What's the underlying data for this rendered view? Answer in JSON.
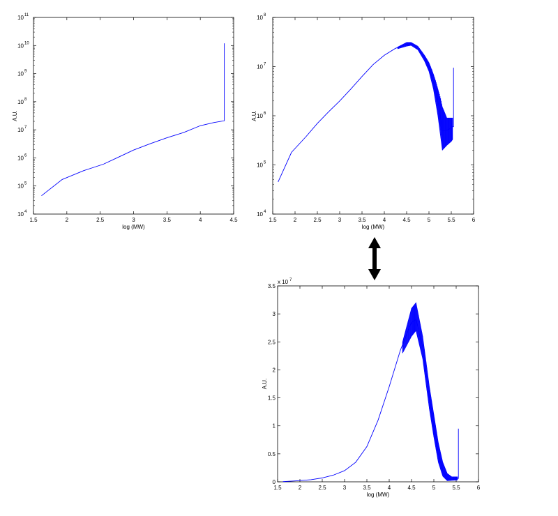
{
  "chart_data": [
    {
      "type": "line",
      "xlabel": "log (MW)",
      "ylabel": "A.U.",
      "xlim": [
        1.5,
        4.5
      ],
      "ylim": [
        10000,
        100000000000
      ],
      "yscale": "log",
      "xticks": [
        "1.5",
        "2",
        "2.5",
        "3",
        "3.5",
        "4",
        "4.5"
      ],
      "yticks_exponents": [
        "4",
        "5",
        "6",
        "7",
        "8",
        "9",
        "10",
        "11"
      ],
      "grid": false,
      "color": "#0000ff",
      "series": [
        {
          "x": [
            1.62,
            1.93,
            2.25,
            2.55,
            2.75,
            3.0,
            3.25,
            3.5,
            3.75,
            4.0,
            4.2,
            4.36,
            4.36
          ],
          "y": [
            45000,
            170000,
            350000,
            600000,
            1000000,
            1900000,
            3200000,
            5200000,
            8000000,
            14000000,
            18000000,
            21000000,
            12000000000
          ]
        }
      ]
    },
    {
      "type": "line",
      "xlabel": "log (MW)",
      "ylabel": "A.U.",
      "xlim": [
        1.5,
        6
      ],
      "ylim": [
        10000,
        100000000
      ],
      "yscale": "log",
      "xticks": [
        "1.5",
        "2",
        "2.5",
        "3",
        "3.5",
        "4",
        "4.5",
        "5",
        "5.5",
        "6"
      ],
      "yticks_exponents": [
        "4",
        "5",
        "6",
        "7",
        "8"
      ],
      "grid": false,
      "color": "#0000ff",
      "series": [
        {
          "x": [
            1.62,
            1.92,
            2.25,
            2.5,
            2.75,
            3.0,
            3.25,
            3.5,
            3.75,
            4.0,
            4.25,
            4.5,
            4.6,
            4.75,
            4.9,
            5.0,
            5.1,
            5.2,
            5.3,
            5.4,
            5.53,
            5.55,
            5.55
          ],
          "y": [
            45000,
            180000,
            380000,
            700000,
            1200000,
            2000000,
            3500000,
            6300000,
            11000000,
            17000000,
            23500000,
            28500000,
            29000000,
            24000000,
            15000000,
            10000000,
            5000000,
            2000000,
            500000,
            500000,
            600000,
            600000,
            9500000
          ],
          "noise_band": {
            "x": [
              4.3,
              4.5,
              4.6,
              4.75,
              4.9,
              5.0,
              5.1,
              5.2,
              5.3,
              5.4,
              5.5,
              5.53
            ],
            "lo": [
              23000000,
              26000000,
              27000000,
              22000000,
              13000000,
              8000000,
              3500000,
              1000000,
              200000,
              250000,
              300000,
              330000
            ],
            "hi": [
              25000000,
              31000000,
              31000000,
              26000000,
              17000000,
              12000000,
              7000000,
              3500000,
              1500000,
              900000,
              900000,
              900000
            ]
          }
        }
      ]
    },
    {
      "type": "line",
      "xlabel": "log (MW)",
      "ylabel": "A.U.",
      "xlim": [
        1.5,
        6
      ],
      "ylim": [
        0,
        35000000
      ],
      "yscale": "linear",
      "xticks": [
        "1.5",
        "2",
        "2.5",
        "3",
        "3.5",
        "4",
        "4.5",
        "5",
        "5.5",
        "6"
      ],
      "yticks": [
        "0",
        "0.5",
        "1",
        "1.5",
        "2",
        "2.5",
        "3",
        "3.5"
      ],
      "y_multiplier_base": "x 10",
      "y_multiplier_exp": "7",
      "grid": false,
      "color": "#0000ff",
      "series": [
        {
          "x": [
            1.62,
            1.92,
            2.25,
            2.5,
            2.75,
            3.0,
            3.25,
            3.5,
            3.75,
            4.0,
            4.25,
            4.5,
            4.6,
            4.75,
            4.9,
            5.0,
            5.1,
            5.2,
            5.3,
            5.4,
            5.53,
            5.55,
            5.55
          ],
          "y": [
            45000,
            180000,
            380000,
            700000,
            1200000,
            2000000,
            3500000,
            6300000,
            11000000,
            17000000,
            23500000,
            28500000,
            29000000,
            24000000,
            15000000,
            10000000,
            5000000,
            2000000,
            500000,
            500000,
            600000,
            600000,
            9500000
          ],
          "noise_band": {
            "x": [
              4.3,
              4.5,
              4.6,
              4.75,
              4.9,
              5.0,
              5.1,
              5.2,
              5.3,
              5.4,
              5.5,
              5.53
            ],
            "lo": [
              23000000,
              26000000,
              27000000,
              22000000,
              13000000,
              8000000,
              3500000,
              1000000,
              200000,
              250000,
              300000,
              330000
            ],
            "hi": [
              25000000,
              31000000,
              32000000,
              26000000,
              17000000,
              12000000,
              7000000,
              3500000,
              1500000,
              900000,
              900000,
              900000
            ]
          }
        }
      ]
    }
  ],
  "annotation": {
    "arrow": "double-headed-vertical-arrow",
    "color": "#000000"
  }
}
